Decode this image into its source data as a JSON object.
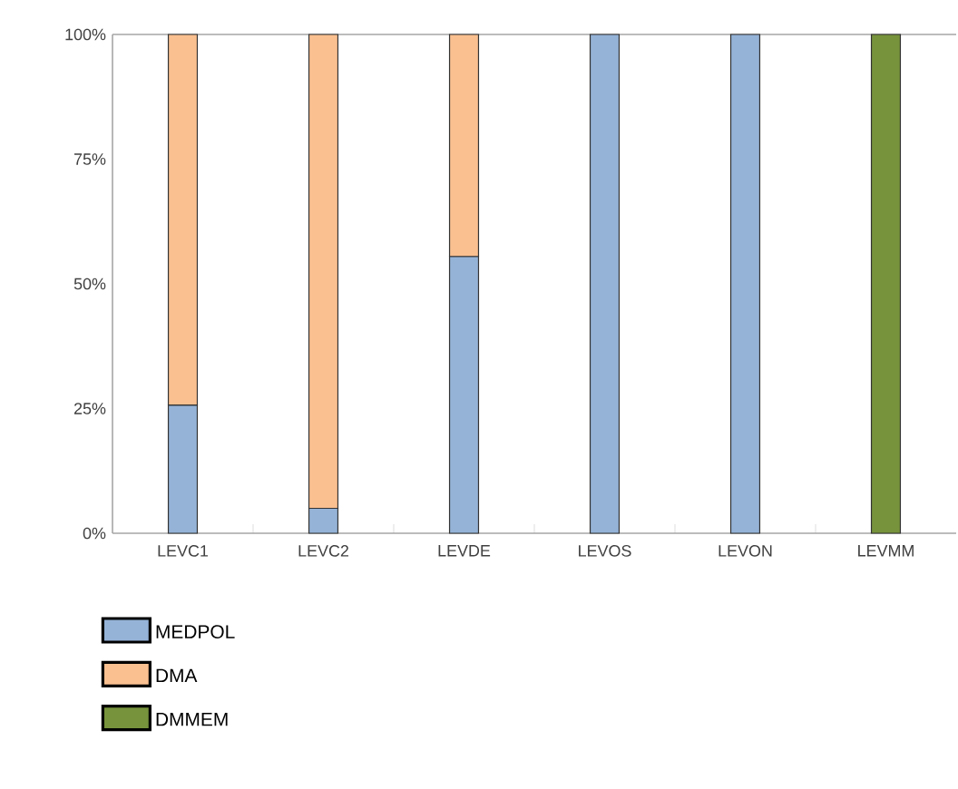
{
  "chart_data": {
    "type": "bar",
    "stacked": true,
    "categories": [
      "LEVC1",
      "LEVC2",
      "LEVDE",
      "LEVOS",
      "LEVON",
      "LEVMM"
    ],
    "series": [
      {
        "name": "MEDPOL",
        "color": "#95b3d7",
        "values": [
          25.7,
          5,
          55.5,
          100,
          100,
          null
        ]
      },
      {
        "name": "DMA",
        "color": "#fac090",
        "values": [
          74.3,
          95,
          44.5,
          null,
          null,
          null
        ]
      },
      {
        "name": "DMMEM",
        "color": "#77933c",
        "values": [
          null,
          null,
          null,
          null,
          null,
          100
        ]
      }
    ],
    "ylim": [
      0,
      100
    ],
    "yticks": [
      {
        "value": 0,
        "label": "0%"
      },
      {
        "value": 25,
        "label": "25%"
      },
      {
        "value": 50,
        "label": "50%"
      },
      {
        "value": 75,
        "label": "75%"
      },
      {
        "value": 100,
        "label": "100%"
      }
    ],
    "grid": false,
    "legend": "bottom left"
  }
}
